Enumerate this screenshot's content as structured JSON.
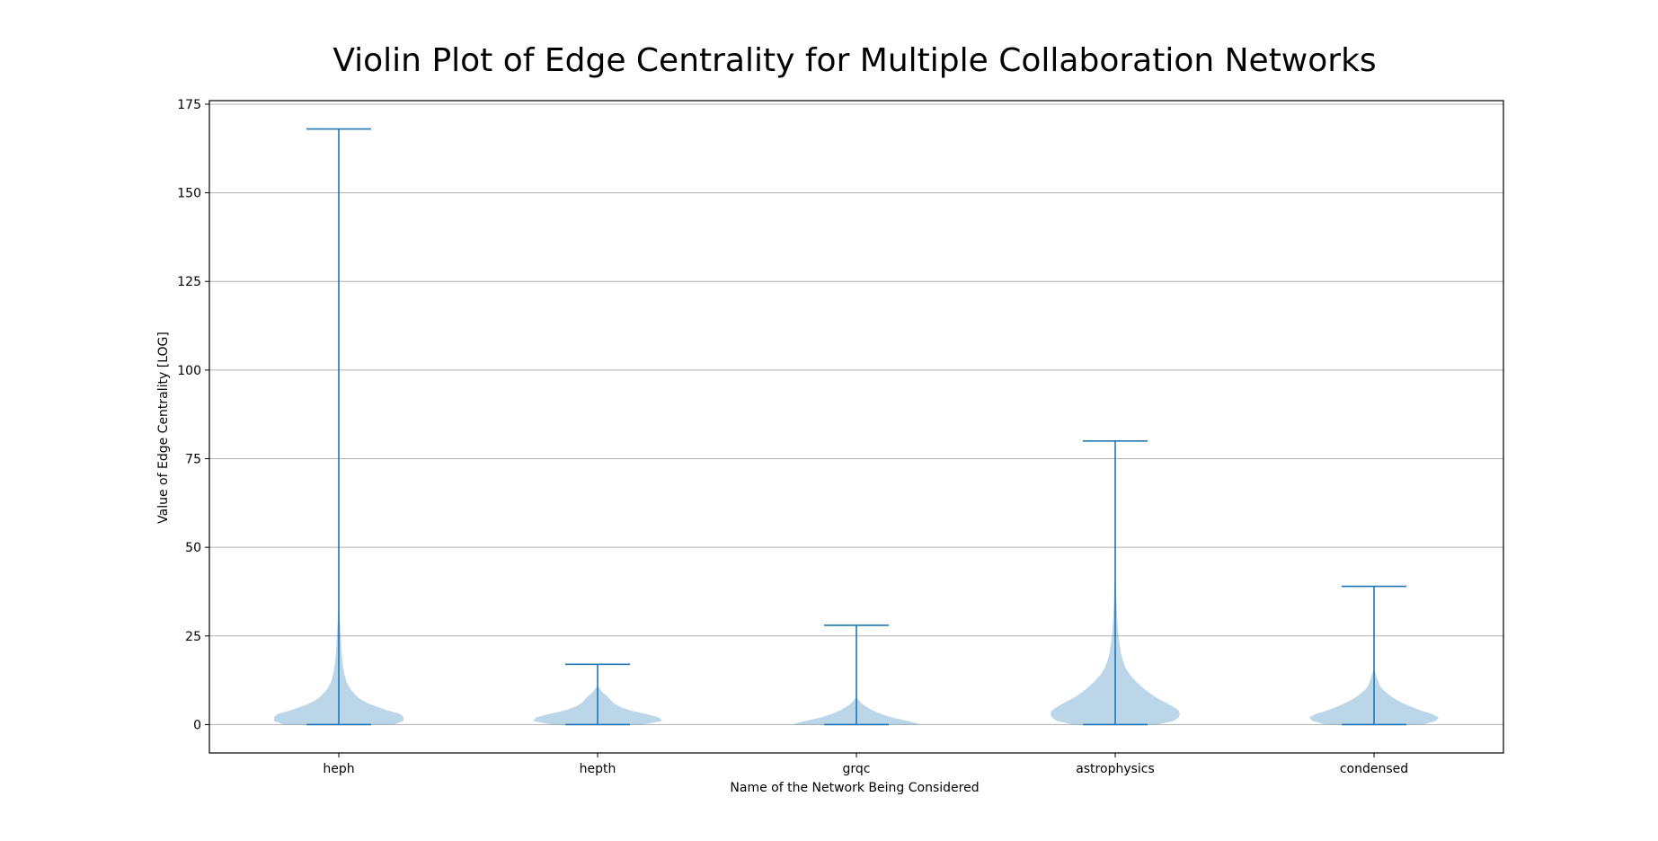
{
  "chart_data": {
    "type": "violin",
    "title": "Violin Plot of Edge Centrality for Multiple Collaboration Networks",
    "xlabel": "Name of the Network Being Considered",
    "ylabel": "Value of Edge Centrality [LOG]",
    "categories": [
      "heph",
      "hepth",
      "grqc",
      "astrophysics",
      "condensed"
    ],
    "ylim": [
      -8,
      176
    ],
    "yticks": [
      0,
      25,
      50,
      75,
      100,
      125,
      150,
      175
    ],
    "grid": "horizontal",
    "colors": {
      "line": "#1f77b4",
      "fill": "#1f77b4",
      "fill_opacity": 0.3,
      "grid": "#b0b0b0",
      "spine": "#000000"
    },
    "series": [
      {
        "category": "heph",
        "min": 0,
        "max": 168,
        "profile": [
          [
            0,
            0.85
          ],
          [
            1,
            1.0
          ],
          [
            2,
            1.0
          ],
          [
            3,
            0.95
          ],
          [
            4,
            0.75
          ],
          [
            5,
            0.6
          ],
          [
            6,
            0.45
          ],
          [
            7,
            0.35
          ],
          [
            8,
            0.28
          ],
          [
            10,
            0.18
          ],
          [
            12,
            0.12
          ],
          [
            14,
            0.09
          ],
          [
            17,
            0.06
          ],
          [
            20,
            0.045
          ],
          [
            25,
            0.03
          ],
          [
            30,
            0.015
          ],
          [
            35,
            0
          ]
        ]
      },
      {
        "category": "hepth",
        "min": 0,
        "max": 17,
        "profile": [
          [
            0,
            0.7
          ],
          [
            1,
            1.0
          ],
          [
            2,
            0.95
          ],
          [
            3,
            0.75
          ],
          [
            4,
            0.5
          ],
          [
            5,
            0.35
          ],
          [
            6,
            0.25
          ],
          [
            7,
            0.2
          ],
          [
            8,
            0.15
          ],
          [
            9,
            0.08
          ],
          [
            10,
            0.04
          ],
          [
            11,
            0
          ]
        ]
      },
      {
        "category": "grqc",
        "min": 0,
        "max": 28,
        "profile": [
          [
            0,
            1.0
          ],
          [
            1,
            0.8
          ],
          [
            2,
            0.55
          ],
          [
            3,
            0.38
          ],
          [
            4,
            0.25
          ],
          [
            5,
            0.16
          ],
          [
            6,
            0.08
          ],
          [
            7,
            0.03
          ],
          [
            8,
            0
          ]
        ]
      },
      {
        "category": "astrophysics",
        "min": 0,
        "max": 80,
        "profile": [
          [
            0,
            0.65
          ],
          [
            1,
            0.9
          ],
          [
            2,
            0.98
          ],
          [
            3,
            1.0
          ],
          [
            4,
            0.98
          ],
          [
            5,
            0.9
          ],
          [
            6,
            0.8
          ],
          [
            7,
            0.7
          ],
          [
            8,
            0.6
          ],
          [
            10,
            0.45
          ],
          [
            12,
            0.33
          ],
          [
            14,
            0.23
          ],
          [
            16,
            0.16
          ],
          [
            18,
            0.12
          ],
          [
            20,
            0.09
          ],
          [
            25,
            0.05
          ],
          [
            30,
            0.03
          ],
          [
            35,
            0.02
          ],
          [
            40,
            0.01
          ],
          [
            45,
            0
          ]
        ]
      },
      {
        "category": "condensed",
        "min": 0,
        "max": 39,
        "profile": [
          [
            0,
            0.75
          ],
          [
            1,
            0.95
          ],
          [
            2,
            1.0
          ],
          [
            3,
            0.9
          ],
          [
            4,
            0.72
          ],
          [
            5,
            0.58
          ],
          [
            6,
            0.45
          ],
          [
            7,
            0.35
          ],
          [
            8,
            0.26
          ],
          [
            9,
            0.19
          ],
          [
            10,
            0.13
          ],
          [
            11,
            0.09
          ],
          [
            12,
            0.07
          ],
          [
            14,
            0.03
          ],
          [
            16,
            0
          ]
        ]
      }
    ]
  }
}
